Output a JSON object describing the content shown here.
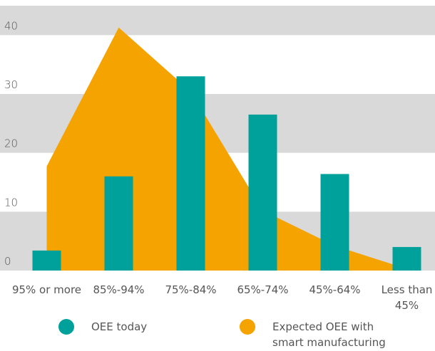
{
  "chart_data": {
    "type": "bar",
    "categories": [
      "95% or more",
      "85%-94%",
      "75%-84%",
      "65%-74%",
      "45%-64%",
      "Less than 45%"
    ],
    "series": [
      {
        "name": "OEE today",
        "color": "#00a19a",
        "type": "bar",
        "values": [
          3.4,
          16,
          33,
          26.5,
          16.4,
          4
        ]
      },
      {
        "name": "Expected OEE with smart manufacturing",
        "color": "#f5a300",
        "type": "area",
        "values": [
          17.7,
          41.3,
          30.4,
          10.2,
          4.2,
          0.3
        ]
      }
    ],
    "ylim": [
      0,
      45
    ],
    "yticks": [
      0,
      10,
      20,
      30,
      40
    ],
    "grid": "bands",
    "band_color": "#d9d9d9"
  }
}
